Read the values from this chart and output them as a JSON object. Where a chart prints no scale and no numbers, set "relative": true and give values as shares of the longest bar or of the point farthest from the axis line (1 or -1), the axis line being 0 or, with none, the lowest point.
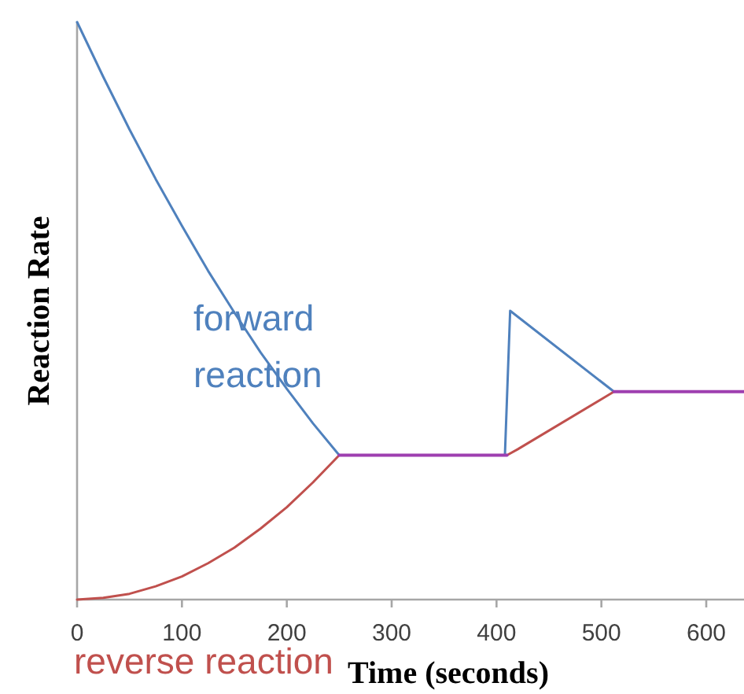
{
  "chart_data": {
    "type": "line",
    "relative": true,
    "xlabel": "Time (seconds)",
    "ylabel": "Reaction Rate",
    "xlim": [
      0,
      636
    ],
    "xticks": [
      0,
      100,
      200,
      300,
      400,
      500,
      600
    ],
    "series": [
      {
        "name": "forward reaction",
        "color": "#4f81bd",
        "x": [
          0,
          25,
          50,
          75,
          100,
          125,
          150,
          175,
          200,
          225,
          250,
          330,
          408,
          413,
          512
        ],
        "values": [
          1,
          0.905,
          0.814,
          0.728,
          0.647,
          0.569,
          0.497,
          0.428,
          0.365,
          0.305,
          0.25,
          null,
          0.25,
          0.5,
          0.36
        ]
      },
      {
        "name": "reverse reaction",
        "color": "#c0504d",
        "x": [
          0,
          25,
          50,
          75,
          100,
          125,
          150,
          175,
          200,
          225,
          250,
          330,
          410,
          420,
          512
        ],
        "values": [
          0,
          0.003,
          0.01,
          0.023,
          0.04,
          0.063,
          0.09,
          0.123,
          0.16,
          0.203,
          0.25,
          null,
          0.25,
          0.26,
          0.36
        ]
      },
      {
        "color": "#9e3fb0",
        "x": [
          250,
          410,
          460,
          512,
          636
        ],
        "values": [
          0.25,
          0.25,
          null,
          0.36,
          0.36
        ]
      }
    ]
  }
}
